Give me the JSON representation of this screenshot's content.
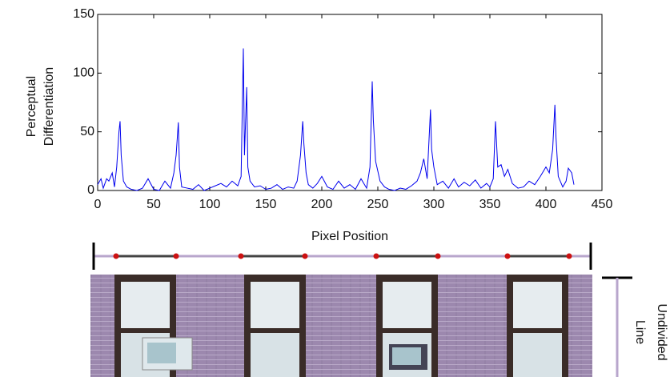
{
  "chart_data": {
    "type": "line",
    "ylabel": [
      "Perceptual",
      "Differentiation"
    ],
    "xlabel": "Pixel Position",
    "x": [
      0,
      3,
      5,
      8,
      10,
      13,
      15,
      17,
      19,
      20,
      21,
      23,
      26,
      30,
      35,
      40,
      45,
      50,
      55,
      60,
      65,
      68,
      70,
      72,
      73,
      75,
      80,
      85,
      90,
      95,
      100,
      105,
      110,
      115,
      120,
      125,
      128,
      130,
      131,
      133,
      134,
      136,
      140,
      145,
      150,
      155,
      160,
      165,
      170,
      175,
      178,
      181,
      183,
      184,
      186,
      188,
      192,
      196,
      200,
      205,
      210,
      215,
      220,
      225,
      230,
      235,
      240,
      243,
      245,
      246,
      248,
      252,
      256,
      260,
      265,
      270,
      275,
      280,
      285,
      288,
      291,
      294,
      297,
      298,
      300,
      303,
      308,
      313,
      318,
      322,
      327,
      332,
      337,
      342,
      347,
      350,
      353,
      355,
      357,
      360,
      363,
      366,
      370,
      375,
      380,
      385,
      390,
      395,
      400,
      403,
      406,
      408,
      409,
      411,
      415,
      418,
      420,
      423,
      425
    ],
    "series": [
      {
        "color": "#0000ee",
        "values": [
          5,
          10,
          2,
          10,
          8,
          15,
          3,
          20,
          50,
          59,
          30,
          8,
          3,
          1,
          0,
          2,
          10,
          1,
          0,
          8,
          2,
          15,
          30,
          58,
          20,
          3,
          2,
          1,
          5,
          0,
          2,
          4,
          6,
          3,
          8,
          4,
          12,
          121,
          30,
          88,
          20,
          8,
          3,
          4,
          1,
          2,
          5,
          1,
          3,
          2,
          8,
          30,
          59,
          40,
          15,
          5,
          2,
          6,
          12,
          3,
          1,
          8,
          2,
          5,
          1,
          10,
          2,
          20,
          93,
          60,
          25,
          8,
          3,
          1,
          0,
          2,
          1,
          4,
          8,
          15,
          27,
          10,
          69,
          35,
          20,
          5,
          8,
          2,
          10,
          3,
          7,
          4,
          9,
          2,
          6,
          3,
          10,
          59,
          20,
          22,
          12,
          18,
          6,
          2,
          3,
          8,
          5,
          12,
          20,
          15,
          35,
          73,
          45,
          12,
          3,
          8,
          19,
          15,
          5
        ]
      }
    ],
    "xlim": [
      0,
      450
    ],
    "xticks": [
      0,
      50,
      100,
      150,
      200,
      250,
      300,
      350,
      400,
      450
    ],
    "ylim": [
      0,
      150
    ],
    "yticks": [
      0,
      50,
      100,
      150
    ]
  },
  "diagram": {
    "label": [
      "Undivided",
      "Line"
    ]
  }
}
